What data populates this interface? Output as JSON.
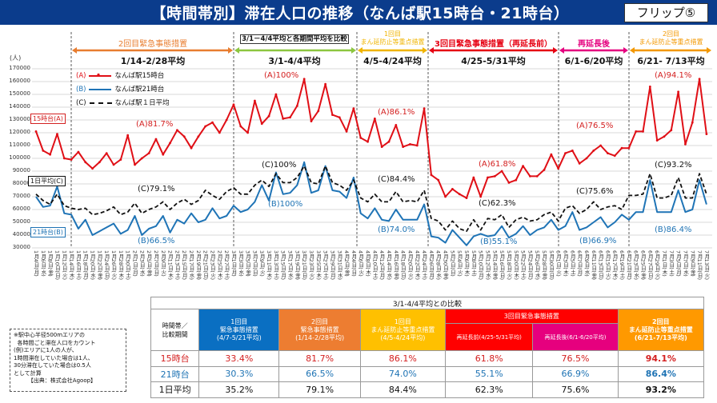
{
  "header": {
    "title": "【時間帯別】滞在人口の推移（なんば駅15時台・21時台）",
    "flip": "フリップ⑤"
  },
  "periods": [
    {
      "label": "2回目緊急事態措置",
      "avg": "1/14-2/28平均",
      "color": "#e87d2f"
    },
    {
      "label": "3/1－4/4平均と各期間平均を比較",
      "avg": "3/1-4/4平均",
      "color": "#8cc63f"
    },
    {
      "label": "1回目\nまん延防止等重点措置",
      "avg": "4/5-4/24平均",
      "color": "#f0b400"
    },
    {
      "label": "3回目緊急事態措置（再延長前）",
      "avg": "4/25-5/31平均",
      "color": "#e60012"
    },
    {
      "label": "再延長後",
      "avg": "6/1-6/20平均",
      "color": "#e5007f"
    },
    {
      "label": "2回目\nまん延防止等重点措置",
      "avg": "6/21- 7/13平均",
      "color": "#f39800"
    }
  ],
  "chart_data": {
    "type": "line",
    "ylabel": "(人)",
    "ylim": [
      30000,
      170000
    ],
    "yticks": [
      "170000",
      "160000",
      "150000",
      "140000",
      "130000",
      "120000",
      "110000",
      "100000",
      "90000",
      "80000",
      "70000",
      "60000",
      "50000",
      "40000",
      "30000"
    ],
    "grid": true,
    "legend_position": "top-left",
    "x": [
      "1月4日(月)",
      "1月6日(水)",
      "1月8日(金)",
      "1月10日(日)",
      "1月12日(火)",
      "1月14日(木)",
      "1月16日(土)",
      "1月18日(月)",
      "1月20日(水)",
      "1月22日(金)",
      "1月24日(日)",
      "1月26日(火)",
      "1月28日(木)",
      "1月30日(土)",
      "2月1日(月)",
      "2月3日(水)",
      "2月5日(金)",
      "2月7日(日)",
      "2月9日(火)",
      "2月11日(木)",
      "2月13日(土)",
      "2月15日(月)",
      "2月17日(水)",
      "2月19日(金)",
      "2月21日(日)",
      "2月23日(火)",
      "2月25日(木)",
      "2月27日(土)",
      "3月1日(月)",
      "3月3日(水)",
      "3月5日(金)",
      "3月7日(日)",
      "3月9日(火)",
      "3月11日(木)",
      "3月13日(土)",
      "3月15日(月)",
      "3月17日(水)",
      "3月19日(金)",
      "3月21日(日)",
      "3月23日(火)",
      "3月25日(木)",
      "3月27日(土)",
      "3月29日(月)",
      "3月31日(水)",
      "4月2日(金)",
      "4月4日(日)",
      "4月6日(火)",
      "4月8日(木)",
      "4月10日(土)",
      "4月12日(月)",
      "4月14日(水)",
      "4月16日(金)",
      "4月18日(日)",
      "4月20日(火)",
      "4月22日(木)",
      "4月24日(土)",
      "4月26日(月)",
      "4月28日(水)",
      "4月30日(金)",
      "5月2日(日)",
      "5月4日(火)",
      "5月6日(木)",
      "5月8日(土)",
      "5月10日(月)",
      "5月12日(水)",
      "5月14日(金)",
      "5月16日(日)",
      "5月18日(火)",
      "5月20日(木)",
      "5月22日(土)",
      "5月24日(月)",
      "5月26日(水)",
      "5月28日(金)",
      "5月30日(日)",
      "6月1日(火)",
      "6月3日(木)",
      "6月5日(土)",
      "6月7日(月)",
      "6月9日(水)",
      "6月11日(金)",
      "6月13日(日)",
      "6月15日(火)",
      "6月17日(木)",
      "6月19日(土)",
      "6月21日(月)",
      "6月23日(水)",
      "6月25日(金)",
      "6月27日(日)",
      "6月29日(火)",
      "7月1日(木)",
      "7月3日(土)",
      "7月5日(月)",
      "7月7日(水)",
      "7月9日(金)",
      "7月11日(日)",
      "7月13日(火)"
    ],
    "series": [
      {
        "name": "なんば駅15時台",
        "key": "(A)",
        "color": "#e00f16",
        "values": [
          121000,
          106000,
          103000,
          119000,
          100000,
          99000,
          105000,
          97000,
          92000,
          97000,
          104000,
          95000,
          99000,
          118000,
          95000,
          100000,
          104000,
          115000,
          103000,
          112000,
          122000,
          117000,
          108000,
          117000,
          125000,
          128000,
          120000,
          130000,
          142000,
          125000,
          120000,
          145000,
          127000,
          133000,
          150000,
          131000,
          132000,
          141000,
          162000,
          129000,
          137000,
          158000,
          134000,
          132000,
          121000,
          139000,
          116000,
          113000,
          131000,
          109000,
          113000,
          126000,
          109000,
          111000,
          110000,
          139000,
          87000,
          83000,
          70000,
          76000,
          72000,
          69000,
          85000,
          70000,
          85000,
          86000,
          90000,
          81000,
          83000,
          94000,
          86000,
          86000,
          91000,
          103000,
          92000,
          104000,
          106000,
          96000,
          100000,
          106000,
          110000,
          104000,
          102000,
          108000,
          108000,
          121000,
          121000,
          156000,
          114000,
          117000,
          122000,
          152000,
          111000,
          128000,
          162000,
          119000
        ]
      },
      {
        "name": "なんば駅21時台",
        "key": "(B)",
        "color": "#1f74b6",
        "values": [
          70000,
          62000,
          63000,
          78000,
          57000,
          56000,
          45000,
          52000,
          40000,
          43000,
          46000,
          49000,
          41000,
          44000,
          55000,
          40000,
          45000,
          47000,
          55000,
          42000,
          52000,
          49000,
          57000,
          50000,
          52000,
          61000,
          53000,
          55000,
          63000,
          58000,
          60000,
          66000,
          79000,
          67000,
          89000,
          72000,
          73000,
          79000,
          97000,
          73000,
          75000,
          94000,
          75000,
          74000,
          69000,
          85000,
          57000,
          53000,
          61000,
          52000,
          51000,
          60000,
          52000,
          52000,
          52000,
          64000,
          39000,
          38000,
          34000,
          44000,
          38000,
          32000,
          39000,
          41000,
          39000,
          40000,
          47000,
          38000,
          41000,
          47000,
          40000,
          44000,
          46000,
          52000,
          44000,
          47000,
          58000,
          44000,
          46000,
          50000,
          54000,
          46000,
          50000,
          56000,
          52000,
          58000,
          58000,
          83000,
          58000,
          58000,
          58000,
          75000,
          58000,
          60000,
          83000,
          64000
        ]
      },
      {
        "name": "なんば駅１日平均",
        "key": "(C)",
        "color": "#111111",
        "values": [
          72000,
          67000,
          64000,
          72000,
          63000,
          61000,
          60000,
          61000,
          56000,
          57000,
          59000,
          62000,
          56000,
          58000,
          65000,
          57000,
          60000,
          62000,
          66000,
          60000,
          65000,
          68000,
          64000,
          67000,
          75000,
          71000,
          68000,
          74000,
          77000,
          72000,
          72000,
          79000,
          83000,
          78000,
          88000,
          81000,
          81000,
          85000,
          94000,
          81000,
          80000,
          94000,
          81000,
          79000,
          75000,
          83000,
          69000,
          66000,
          72000,
          66000,
          66000,
          74000,
          66000,
          67000,
          66000,
          75000,
          53000,
          51000,
          44000,
          51000,
          45000,
          43000,
          52000,
          44000,
          53000,
          52000,
          56000,
          46000,
          52000,
          54000,
          51000,
          52000,
          56000,
          58000,
          51000,
          61000,
          63000,
          57000,
          60000,
          66000,
          60000,
          62000,
          63000,
          60000,
          71000,
          71000,
          72000,
          88000,
          69000,
          69000,
          71000,
          85000,
          69000,
          69000,
          88000,
          72000
        ]
      }
    ],
    "annotations": {
      "A": [
        "(A)81.7%",
        "(A)100%",
        "(A)86.1%",
        "(A)61.8%",
        "(A)76.5%",
        "(A)94.1%"
      ],
      "B": [
        "(B)66.5%",
        "(B)100%",
        "(B)74.0%",
        "(B)55.1%",
        "(B)66.9%",
        "(B)86.4%"
      ],
      "C": [
        "(C)79.1%",
        "(C)100%",
        "(C)84.4%",
        "(C)62.3%",
        "(C)75.6%",
        "(C)93.2%"
      ]
    },
    "callouts": {
      "a": "15時台(A)",
      "c": "1日平均(C)",
      "b": "21時台(B)"
    }
  },
  "note": "※駅中心半径500mエリアの\n  各時間ごと滞在人口をカウント\n(例)エリアに1人の人が、\n1時間滞在していた場合は1人、\n30分滞在していた場合は0.5人\nとして計算\n        【出典：株式会社Agoop】",
  "table": {
    "title": "3/1-4/4平均との比較",
    "corner": "時間帯／\n比較期間",
    "cols": [
      "1回目\n緊急事態措置\n(4/7-5/21平均)",
      "2回目\n緊急事態措置\n(1/14-2/28平均)",
      "1回目\nまん延防止等重点措置\n(4/5-4/24平均)",
      "3回目緊急事態措置",
      "2回目\nまん延防止等重点措置\n(6/21-7/13平均)"
    ],
    "sub": [
      "再延長前(4/25-5/31平均)",
      "再延長後(6/1-6/20平均)"
    ],
    "col_colors": [
      "#0a6fc2",
      "#ed7d31",
      "#ffc000",
      "#ff0000",
      "#e6007e",
      "#ff9900"
    ],
    "rows": [
      {
        "label": "15時台",
        "values": [
          "33.4%",
          "81.7%",
          "86.1%",
          "61.8%",
          "76.5%",
          "94.1%"
        ]
      },
      {
        "label": "21時台",
        "values": [
          "30.3%",
          "66.5%",
          "74.0%",
          "55.1%",
          "66.9%",
          "86.4%"
        ]
      },
      {
        "label": "1日平均",
        "values": [
          "35.2%",
          "79.1%",
          "84.4%",
          "62.3%",
          "75.6%",
          "93.2%"
        ]
      }
    ]
  }
}
